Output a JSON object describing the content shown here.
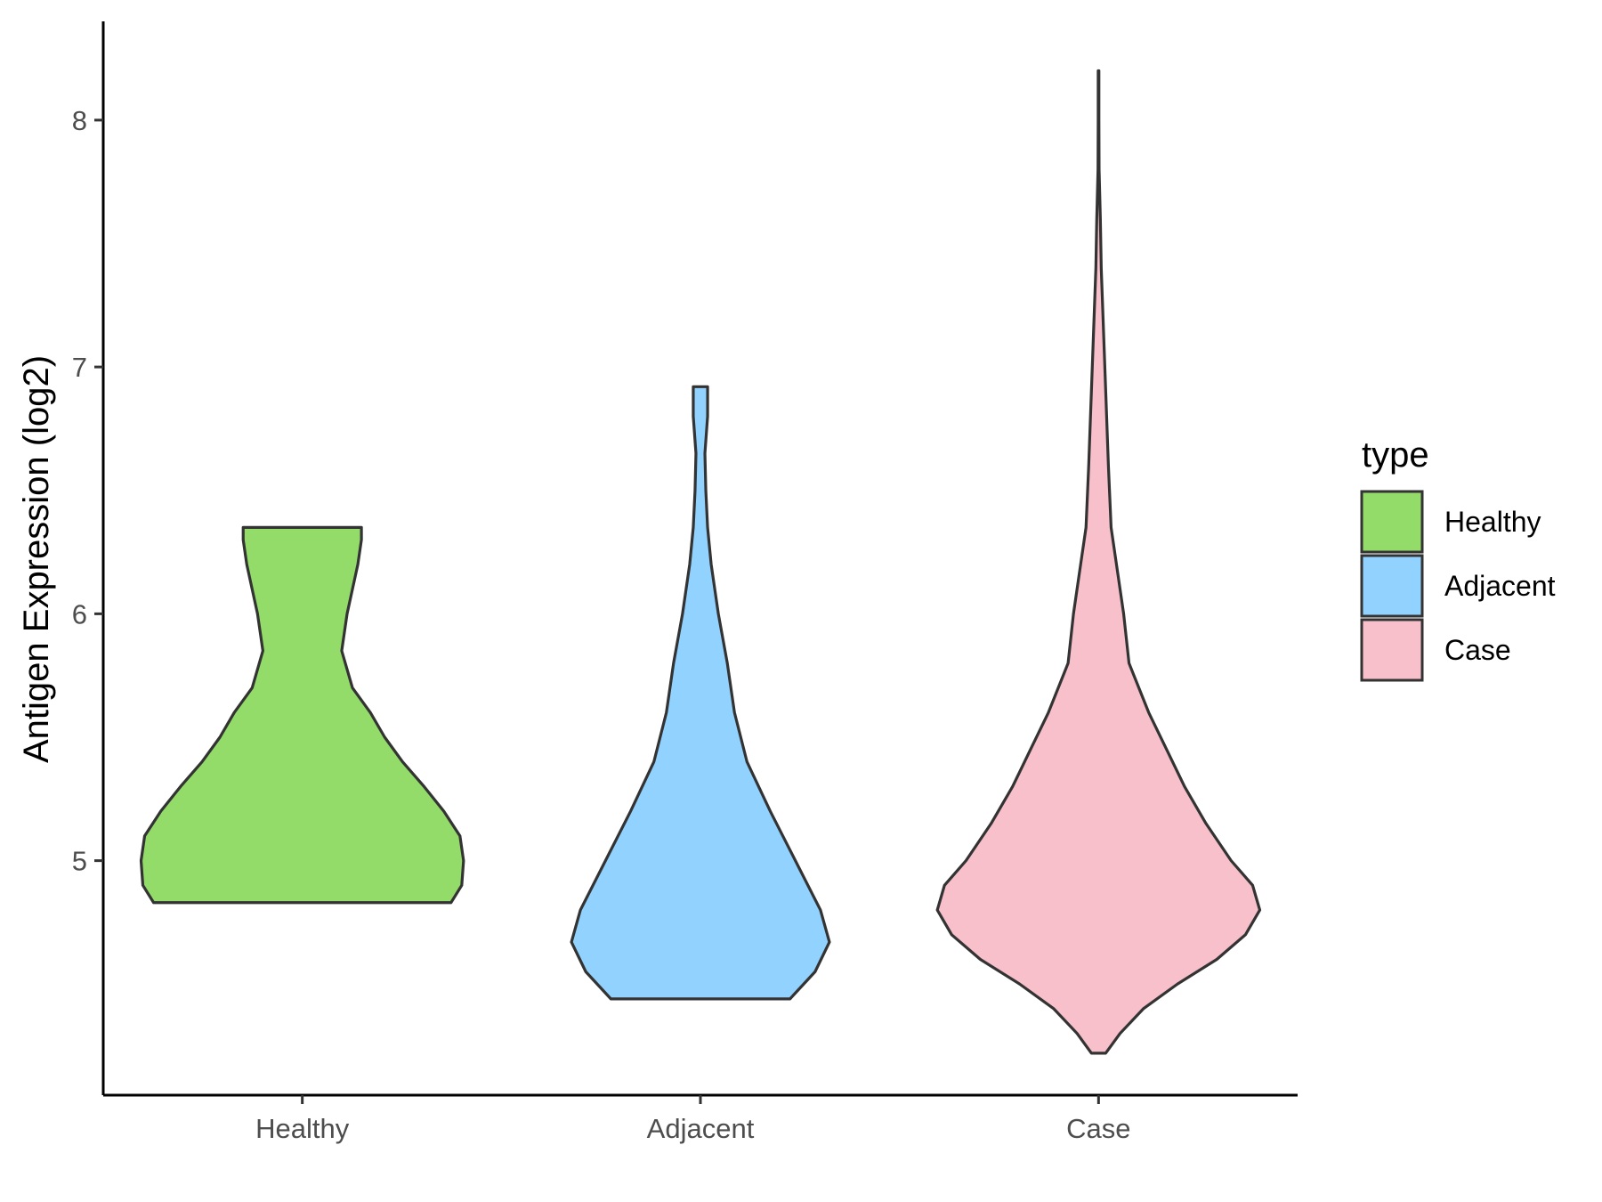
{
  "chart_data": {
    "type": "violin",
    "title": "",
    "xlabel": "",
    "ylabel": "Antigen Expression (log2)",
    "ylim": [
      4.05,
      8.4
    ],
    "yticks": [
      5,
      6,
      7,
      8
    ],
    "grid": false,
    "categories": [
      "Healthy",
      "Adjacent",
      "Case"
    ],
    "legend": {
      "title": "type",
      "placement": "right",
      "entries": [
        "Healthy",
        "Adjacent",
        "Case"
      ]
    },
    "series": [
      {
        "category": "Healthy",
        "color": "#93dc6a",
        "min": 4.83,
        "max": 6.35,
        "density": [
          [
            4.83,
            0.83
          ],
          [
            4.9,
            0.89
          ],
          [
            5.0,
            0.9
          ],
          [
            5.1,
            0.88
          ],
          [
            5.2,
            0.79
          ],
          [
            5.3,
            0.68
          ],
          [
            5.4,
            0.56
          ],
          [
            5.5,
            0.46
          ],
          [
            5.6,
            0.38
          ],
          [
            5.7,
            0.28
          ],
          [
            5.85,
            0.22
          ],
          [
            6.0,
            0.25
          ],
          [
            6.1,
            0.28
          ],
          [
            6.2,
            0.31
          ],
          [
            6.3,
            0.33
          ],
          [
            6.35,
            0.33
          ]
        ]
      },
      {
        "category": "Adjacent",
        "color": "#92d2ff",
        "min": 4.44,
        "max": 6.92,
        "density": [
          [
            4.44,
            0.5
          ],
          [
            4.55,
            0.64
          ],
          [
            4.67,
            0.72
          ],
          [
            4.8,
            0.67
          ],
          [
            5.0,
            0.53
          ],
          [
            5.2,
            0.39
          ],
          [
            5.4,
            0.26
          ],
          [
            5.6,
            0.19
          ],
          [
            5.8,
            0.15
          ],
          [
            6.0,
            0.1
          ],
          [
            6.2,
            0.06
          ],
          [
            6.35,
            0.04
          ],
          [
            6.5,
            0.03
          ],
          [
            6.65,
            0.025
          ],
          [
            6.8,
            0.04
          ],
          [
            6.92,
            0.04
          ]
        ]
      },
      {
        "category": "Case",
        "color": "#f8c0cb",
        "min": 4.22,
        "max": 8.2,
        "density": [
          [
            4.22,
            0.04
          ],
          [
            4.3,
            0.12
          ],
          [
            4.4,
            0.25
          ],
          [
            4.5,
            0.44
          ],
          [
            4.6,
            0.66
          ],
          [
            4.7,
            0.82
          ],
          [
            4.8,
            0.9
          ],
          [
            4.9,
            0.86
          ],
          [
            5.0,
            0.74
          ],
          [
            5.15,
            0.6
          ],
          [
            5.3,
            0.48
          ],
          [
            5.45,
            0.38
          ],
          [
            5.6,
            0.28
          ],
          [
            5.8,
            0.17
          ],
          [
            6.0,
            0.14
          ],
          [
            6.2,
            0.1
          ],
          [
            6.35,
            0.07
          ],
          [
            6.6,
            0.055
          ],
          [
            6.9,
            0.04
          ],
          [
            7.2,
            0.025
          ],
          [
            7.4,
            0.015
          ],
          [
            7.6,
            0.01
          ],
          [
            7.8,
            0.003
          ],
          [
            8.0,
            0.002
          ],
          [
            8.2,
            0.002
          ]
        ]
      }
    ],
    "colors": {
      "outline": "#333333",
      "axis": "#000000",
      "tick_label": "#4d4d4d"
    }
  }
}
